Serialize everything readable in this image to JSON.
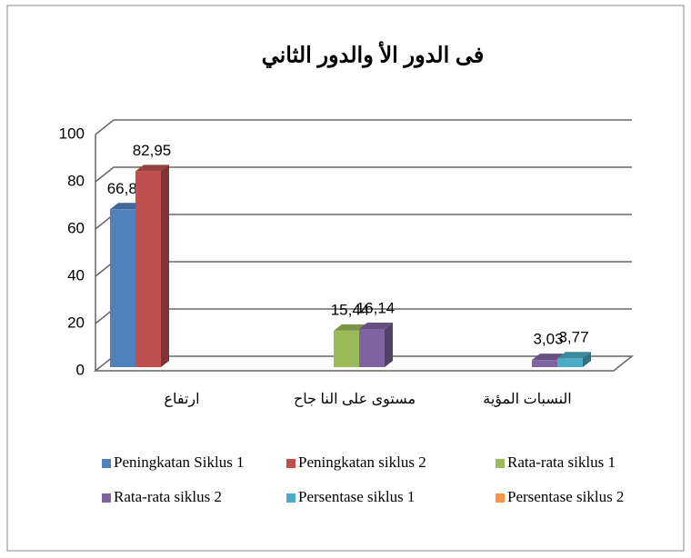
{
  "chart_data": {
    "type": "bar3d",
    "title": "فى الدور الأ والدور الثاني",
    "categories": [
      "ارتفاع",
      "مستوى على النا جاح",
      "النسبات المؤية"
    ],
    "series": [
      {
        "name": "Peningkatan Siklus 1",
        "color": "#4f81bd",
        "values": [
          66.81,
          null,
          null
        ],
        "value_labels": [
          "66,81",
          null,
          null
        ]
      },
      {
        "name": "Peningkatan siklus 2",
        "color": "#c0504d",
        "values": [
          82.95,
          null,
          null
        ],
        "value_labels": [
          "82,95",
          null,
          null
        ]
      },
      {
        "name": "Rata-rata siklus 1",
        "color": "#9bbb59",
        "values": [
          null,
          15.44,
          null
        ],
        "value_labels": [
          null,
          "15,44",
          null
        ]
      },
      {
        "name": "Rata-rata siklus 2",
        "color": "#8064a2",
        "values": [
          null,
          16.14,
          3.03
        ],
        "value_labels": [
          null,
          "16,14",
          "3,03"
        ]
      },
      {
        "name": "Persentase siklus 1",
        "color": "#4bacc6",
        "values": [
          null,
          null,
          3.77
        ],
        "value_labels": [
          null,
          null,
          "3,77"
        ]
      },
      {
        "name": "Persentase siklus 2",
        "color": "#f79646",
        "values": [
          null,
          null,
          null
        ],
        "value_labels": [
          null,
          null,
          null
        ]
      }
    ],
    "ylim": [
      0,
      100
    ],
    "yticks": [
      0,
      20,
      40,
      60,
      80,
      100
    ],
    "grid": true,
    "legend": "bottom"
  }
}
